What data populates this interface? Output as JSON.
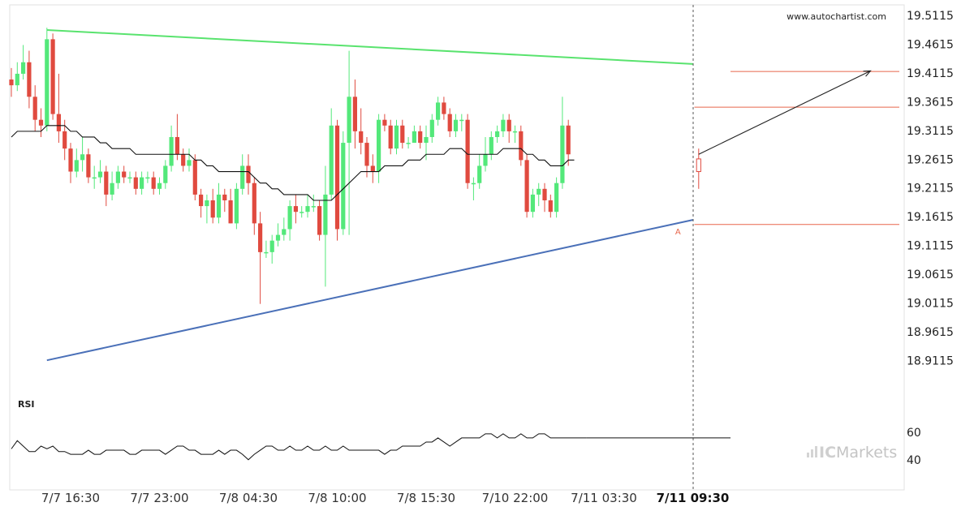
{
  "watermark": "www.autochartist.com",
  "brand": {
    "prefix": "IC",
    "name": "Markets"
  },
  "rsi_label": "RSI",
  "colors": {
    "bull": "#53e87a",
    "bear": "#e04a3f",
    "resistance": "#59e36e",
    "support": "#4a70b8",
    "ma": "#111111",
    "level": "#e8664b",
    "forecast": "#222222"
  },
  "chart_data": [
    {
      "type": "candlestick",
      "title": "",
      "ylim": [
        18.87,
        19.51
      ],
      "y_ticks": [
        "19.5115",
        "19.4615",
        "19.4115",
        "19.3615",
        "19.3115",
        "19.2615",
        "19.2115",
        "19.1615",
        "19.1115",
        "19.0615",
        "19.0115",
        "18.9615",
        "18.9115"
      ],
      "x_tick_labels": [
        {
          "index": 10,
          "label": "7/7 16:30",
          "bold": false
        },
        {
          "index": 25,
          "label": "7/7 23:00",
          "bold": false
        },
        {
          "index": 40,
          "label": "7/8 04:30",
          "bold": false
        },
        {
          "index": 55,
          "label": "7/8 10:00",
          "bold": false
        },
        {
          "index": 70,
          "label": "7/8 15:30",
          "bold": false
        },
        {
          "index": 85,
          "label": "7/10 22:00",
          "bold": false
        },
        {
          "index": 100,
          "label": "7/11 03:30",
          "bold": false
        },
        {
          "index": 115,
          "label": "7/11 09:30",
          "bold": true
        }
      ],
      "candles": [
        [
          19.4,
          19.39,
          19.42,
          19.37
        ],
        [
          19.39,
          19.41,
          19.43,
          19.38
        ],
        [
          19.41,
          19.43,
          19.46,
          19.4
        ],
        [
          19.43,
          19.37,
          19.45,
          19.35
        ],
        [
          19.37,
          19.33,
          19.39,
          19.31
        ],
        [
          19.33,
          19.32,
          19.35,
          19.3
        ],
        [
          19.32,
          19.47,
          19.49,
          19.31
        ],
        [
          19.47,
          19.34,
          19.48,
          19.33
        ],
        [
          19.34,
          19.31,
          19.41,
          19.29
        ],
        [
          19.31,
          19.28,
          19.33,
          19.26
        ],
        [
          19.28,
          19.24,
          19.29,
          19.22
        ],
        [
          19.24,
          19.26,
          19.28,
          19.23
        ],
        [
          19.26,
          19.27,
          19.3,
          19.24
        ],
        [
          19.27,
          19.23,
          19.28,
          19.22
        ],
        [
          19.23,
          19.23,
          19.25,
          19.21
        ],
        [
          19.23,
          19.24,
          19.26,
          19.22
        ],
        [
          19.24,
          19.2,
          19.25,
          19.18
        ],
        [
          19.2,
          19.22,
          19.24,
          19.19
        ],
        [
          19.22,
          19.24,
          19.25,
          19.21
        ],
        [
          19.24,
          19.23,
          19.25,
          19.22
        ],
        [
          19.23,
          19.23,
          19.24,
          19.22
        ],
        [
          19.23,
          19.21,
          19.24,
          19.2
        ],
        [
          19.21,
          19.23,
          19.24,
          19.2
        ],
        [
          19.23,
          19.23,
          19.24,
          19.22
        ],
        [
          19.23,
          19.21,
          19.24,
          19.2
        ],
        [
          19.21,
          19.22,
          19.23,
          19.2
        ],
        [
          19.22,
          19.25,
          19.26,
          19.21
        ],
        [
          19.25,
          19.3,
          19.32,
          19.24
        ],
        [
          19.3,
          19.27,
          19.34,
          19.26
        ],
        [
          19.27,
          19.25,
          19.28,
          19.24
        ],
        [
          19.25,
          19.26,
          19.28,
          19.24
        ],
        [
          19.26,
          19.2,
          19.27,
          19.19
        ],
        [
          19.2,
          19.18,
          19.21,
          19.16
        ],
        [
          19.18,
          19.19,
          19.2,
          19.15
        ],
        [
          19.19,
          19.16,
          19.21,
          19.15
        ],
        [
          19.16,
          19.2,
          19.22,
          19.15
        ],
        [
          19.2,
          19.19,
          19.21,
          19.17
        ],
        [
          19.19,
          19.15,
          19.21,
          19.15
        ],
        [
          19.15,
          19.21,
          19.22,
          19.14
        ],
        [
          19.21,
          19.25,
          19.27,
          19.2
        ],
        [
          19.25,
          19.22,
          19.27,
          19.2
        ],
        [
          19.22,
          19.15,
          19.23,
          19.13
        ],
        [
          19.15,
          19.1,
          19.17,
          19.01
        ],
        [
          19.1,
          19.1,
          19.12,
          19.09
        ],
        [
          19.1,
          19.12,
          19.13,
          19.08
        ],
        [
          19.12,
          19.13,
          19.15,
          19.11
        ],
        [
          19.13,
          19.14,
          19.16,
          19.12
        ],
        [
          19.14,
          19.18,
          19.19,
          19.12
        ],
        [
          19.18,
          19.17,
          19.2,
          19.15
        ],
        [
          19.17,
          19.17,
          19.18,
          19.16
        ],
        [
          19.17,
          19.18,
          19.2,
          19.16
        ],
        [
          19.18,
          19.18,
          19.2,
          19.17
        ],
        [
          19.18,
          19.13,
          19.19,
          19.12
        ],
        [
          19.13,
          19.2,
          19.25,
          19.04
        ],
        [
          19.2,
          19.32,
          19.35,
          19.19
        ],
        [
          19.32,
          19.14,
          19.33,
          19.12
        ],
        [
          19.14,
          19.29,
          19.31,
          19.13
        ],
        [
          19.29,
          19.37,
          19.45,
          19.13
        ],
        [
          19.37,
          19.31,
          19.4,
          19.28
        ],
        [
          19.31,
          19.29,
          19.35,
          19.27
        ],
        [
          19.29,
          19.25,
          19.3,
          19.23
        ],
        [
          19.25,
          19.24,
          19.27,
          19.22
        ],
        [
          19.24,
          19.33,
          19.34,
          19.22
        ],
        [
          19.33,
          19.32,
          19.34,
          19.31
        ],
        [
          19.32,
          19.28,
          19.33,
          19.27
        ],
        [
          19.28,
          19.32,
          19.33,
          19.27
        ],
        [
          19.32,
          19.29,
          19.33,
          19.28
        ],
        [
          19.29,
          19.29,
          19.3,
          19.28
        ],
        [
          19.29,
          19.31,
          19.32,
          19.29
        ],
        [
          19.31,
          19.29,
          19.32,
          19.28
        ],
        [
          19.29,
          19.3,
          19.32,
          19.26
        ],
        [
          19.3,
          19.33,
          19.34,
          19.29
        ],
        [
          19.33,
          19.36,
          19.37,
          19.32
        ],
        [
          19.36,
          19.34,
          19.37,
          19.33
        ],
        [
          19.34,
          19.31,
          19.35,
          19.3
        ],
        [
          19.31,
          19.33,
          19.34,
          19.3
        ],
        [
          19.33,
          19.33,
          19.34,
          19.31
        ],
        [
          19.33,
          19.22,
          19.34,
          19.21
        ],
        [
          19.22,
          19.22,
          19.23,
          19.19
        ],
        [
          19.22,
          19.25,
          19.27,
          19.21
        ],
        [
          19.25,
          19.27,
          19.3,
          19.24
        ],
        [
          19.27,
          19.3,
          19.31,
          19.26
        ],
        [
          19.3,
          19.31,
          19.32,
          19.29
        ],
        [
          19.31,
          19.33,
          19.34,
          19.3
        ],
        [
          19.33,
          19.31,
          19.34,
          19.29
        ],
        [
          19.31,
          19.31,
          19.32,
          19.29
        ],
        [
          19.31,
          19.26,
          19.32,
          19.25
        ],
        [
          19.26,
          19.17,
          19.27,
          19.16
        ],
        [
          19.17,
          19.2,
          19.21,
          19.16
        ],
        [
          19.2,
          19.21,
          19.22,
          19.18
        ],
        [
          19.21,
          19.19,
          19.22,
          19.17
        ],
        [
          19.19,
          19.17,
          19.2,
          19.16
        ],
        [
          19.17,
          19.22,
          19.23,
          19.16
        ],
        [
          19.22,
          19.32,
          19.37,
          19.21
        ],
        [
          19.32,
          19.27,
          19.33,
          19.25
        ]
      ],
      "rsi": {
        "y_ticks": [
          "60",
          "40"
        ],
        "ylim": [
          25,
          75
        ],
        "values": [
          48,
          54,
          50,
          46,
          46,
          50,
          48,
          50,
          46,
          46,
          44,
          44,
          44,
          47,
          44,
          44,
          47,
          47,
          47,
          47,
          44,
          44,
          47,
          47,
          47,
          47,
          44,
          47,
          50,
          50,
          47,
          47,
          44,
          44,
          44,
          47,
          44,
          47,
          47,
          44,
          40,
          44,
          47,
          50,
          50,
          47,
          47,
          50,
          47,
          47,
          50,
          47,
          47,
          50,
          47,
          47,
          50,
          47,
          47,
          47,
          47,
          47,
          47,
          44,
          47,
          47,
          50,
          50,
          50,
          50,
          53,
          53,
          56,
          53,
          50,
          53,
          56,
          56,
          56,
          56,
          59,
          59,
          56,
          59,
          56,
          56,
          59,
          56,
          56,
          59,
          59,
          56,
          56,
          56,
          56,
          56,
          56,
          56
        ]
      },
      "resistance_line": {
        "from": [
          6,
          19.486
        ],
        "to": [
          115,
          19.427
        ]
      },
      "support_line": {
        "from": [
          6,
          18.912
        ],
        "to": [
          115,
          19.156
        ]
      },
      "levels": [
        19.414,
        19.352,
        19.148
      ],
      "forecast": {
        "from": [
          116,
          19.27
        ],
        "to": [
          145,
          19.415
        ]
      },
      "moving_average": [
        19.3,
        19.31,
        19.31,
        19.31,
        19.31,
        19.31,
        19.32,
        19.32,
        19.32,
        19.32,
        19.31,
        19.31,
        19.3,
        19.3,
        19.3,
        19.29,
        19.29,
        19.28,
        19.28,
        19.28,
        19.28,
        19.27,
        19.27,
        19.27,
        19.27,
        19.27,
        19.27,
        19.27,
        19.27,
        19.27,
        19.27,
        19.26,
        19.26,
        19.25,
        19.25,
        19.24,
        19.24,
        19.24,
        19.24,
        19.24,
        19.24,
        19.23,
        19.22,
        19.22,
        19.21,
        19.21,
        19.2,
        19.2,
        19.2,
        19.2,
        19.2,
        19.19,
        19.19,
        19.19,
        19.19,
        19.2,
        19.21,
        19.22,
        19.23,
        19.24,
        19.24,
        19.24,
        19.24,
        19.25,
        19.25,
        19.25,
        19.25,
        19.26,
        19.26,
        19.26,
        19.27,
        19.27,
        19.27,
        19.27,
        19.28,
        19.28,
        19.28,
        19.27,
        19.27,
        19.27,
        19.27,
        19.27,
        19.27,
        19.28,
        19.28,
        19.28,
        19.28,
        19.27,
        19.27,
        19.26,
        19.26,
        19.25,
        19.25,
        19.25,
        19.26,
        19.26
      ],
      "point_label": "A",
      "current_index": 115
    }
  ]
}
